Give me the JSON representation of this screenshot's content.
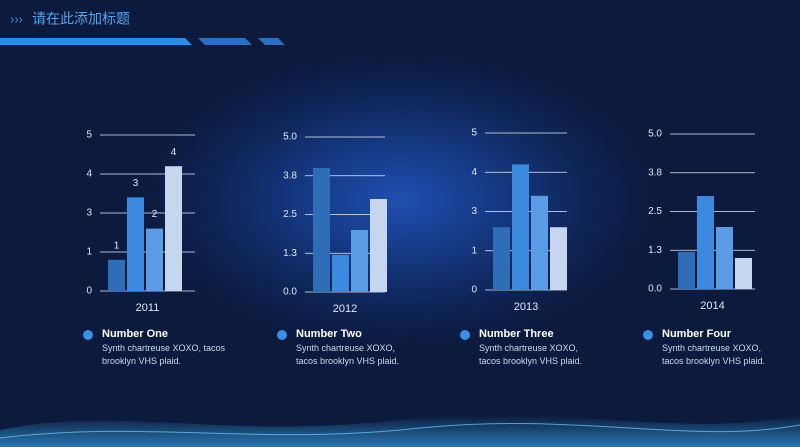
{
  "header": {
    "title": "请在此添加标题"
  },
  "chart_data": [
    {
      "type": "bar",
      "x_label": "2011",
      "values": [
        1,
        3,
        2,
        4
      ],
      "data_labels": true,
      "colors": [
        "#2f6db6",
        "#3b8ae0",
        "#5a9ce6",
        "#c6d6ee"
      ],
      "ylim": [
        0,
        5
      ],
      "yticks": [
        0,
        {
          "value": 1.25,
          "label": "1"
        },
        {
          "value": 2.5,
          "label": "3"
        },
        {
          "value": 3.75,
          "label": "4"
        },
        5
      ],
      "grid": true,
      "legend": {
        "name": "Number One",
        "text": "Synth chartreuse XOXO, tacos brooklyn VHS plaid."
      }
    },
    {
      "type": "bar",
      "x_label": "2012",
      "values": [
        4,
        1.2,
        2,
        3
      ],
      "data_labels": false,
      "colors": [
        "#2f6db6",
        "#3b8ae0",
        "#5a9ce6",
        "#c6d6ee"
      ],
      "ylim": [
        0,
        5
      ],
      "yticks": [
        {
          "value": 0,
          "label": "0.0"
        },
        {
          "value": 1.25,
          "label": "1.3"
        },
        2.5,
        {
          "value": 3.75,
          "label": "3.8"
        },
        {
          "value": 5,
          "label": "5.0"
        }
      ],
      "grid": true,
      "legend": {
        "name": "Number Two",
        "text": "Synth chartreuse XOXO, tacos brooklyn VHS plaid."
      }
    },
    {
      "type": "bar",
      "x_label": "2013",
      "values": [
        2,
        4,
        3,
        2
      ],
      "data_labels": false,
      "colors": [
        "#2f6db6",
        "#3b8ae0",
        "#5a9ce6",
        "#c6d6ee"
      ],
      "ylim": [
        0,
        5
      ],
      "yticks": [
        0,
        {
          "value": 1.25,
          "label": "1"
        },
        {
          "value": 2.5,
          "label": "3"
        },
        {
          "value": 3.75,
          "label": "4"
        },
        5
      ],
      "grid": true,
      "legend": {
        "name": "Number Three",
        "text": "Synth chartreuse XOXO, tacos brooklyn VHS plaid."
      }
    },
    {
      "type": "bar",
      "x_label": "2014",
      "values": [
        1.2,
        3,
        2,
        1
      ],
      "data_labels": false,
      "colors": [
        "#2f6db6",
        "#3b8ae0",
        "#5a9ce6",
        "#c6d6ee"
      ],
      "ylim": [
        0,
        5
      ],
      "yticks": [
        {
          "value": 0,
          "label": "0.0"
        },
        {
          "value": 1.25,
          "label": "1.3"
        },
        2.5,
        {
          "value": 3.75,
          "label": "3.8"
        },
        {
          "value": 5,
          "label": "5.0"
        }
      ],
      "grid": true,
      "legend": {
        "name": "Number Four",
        "text": "Synth chartreuse XOXO, tacos brooklyn VHS plaid."
      }
    }
  ]
}
